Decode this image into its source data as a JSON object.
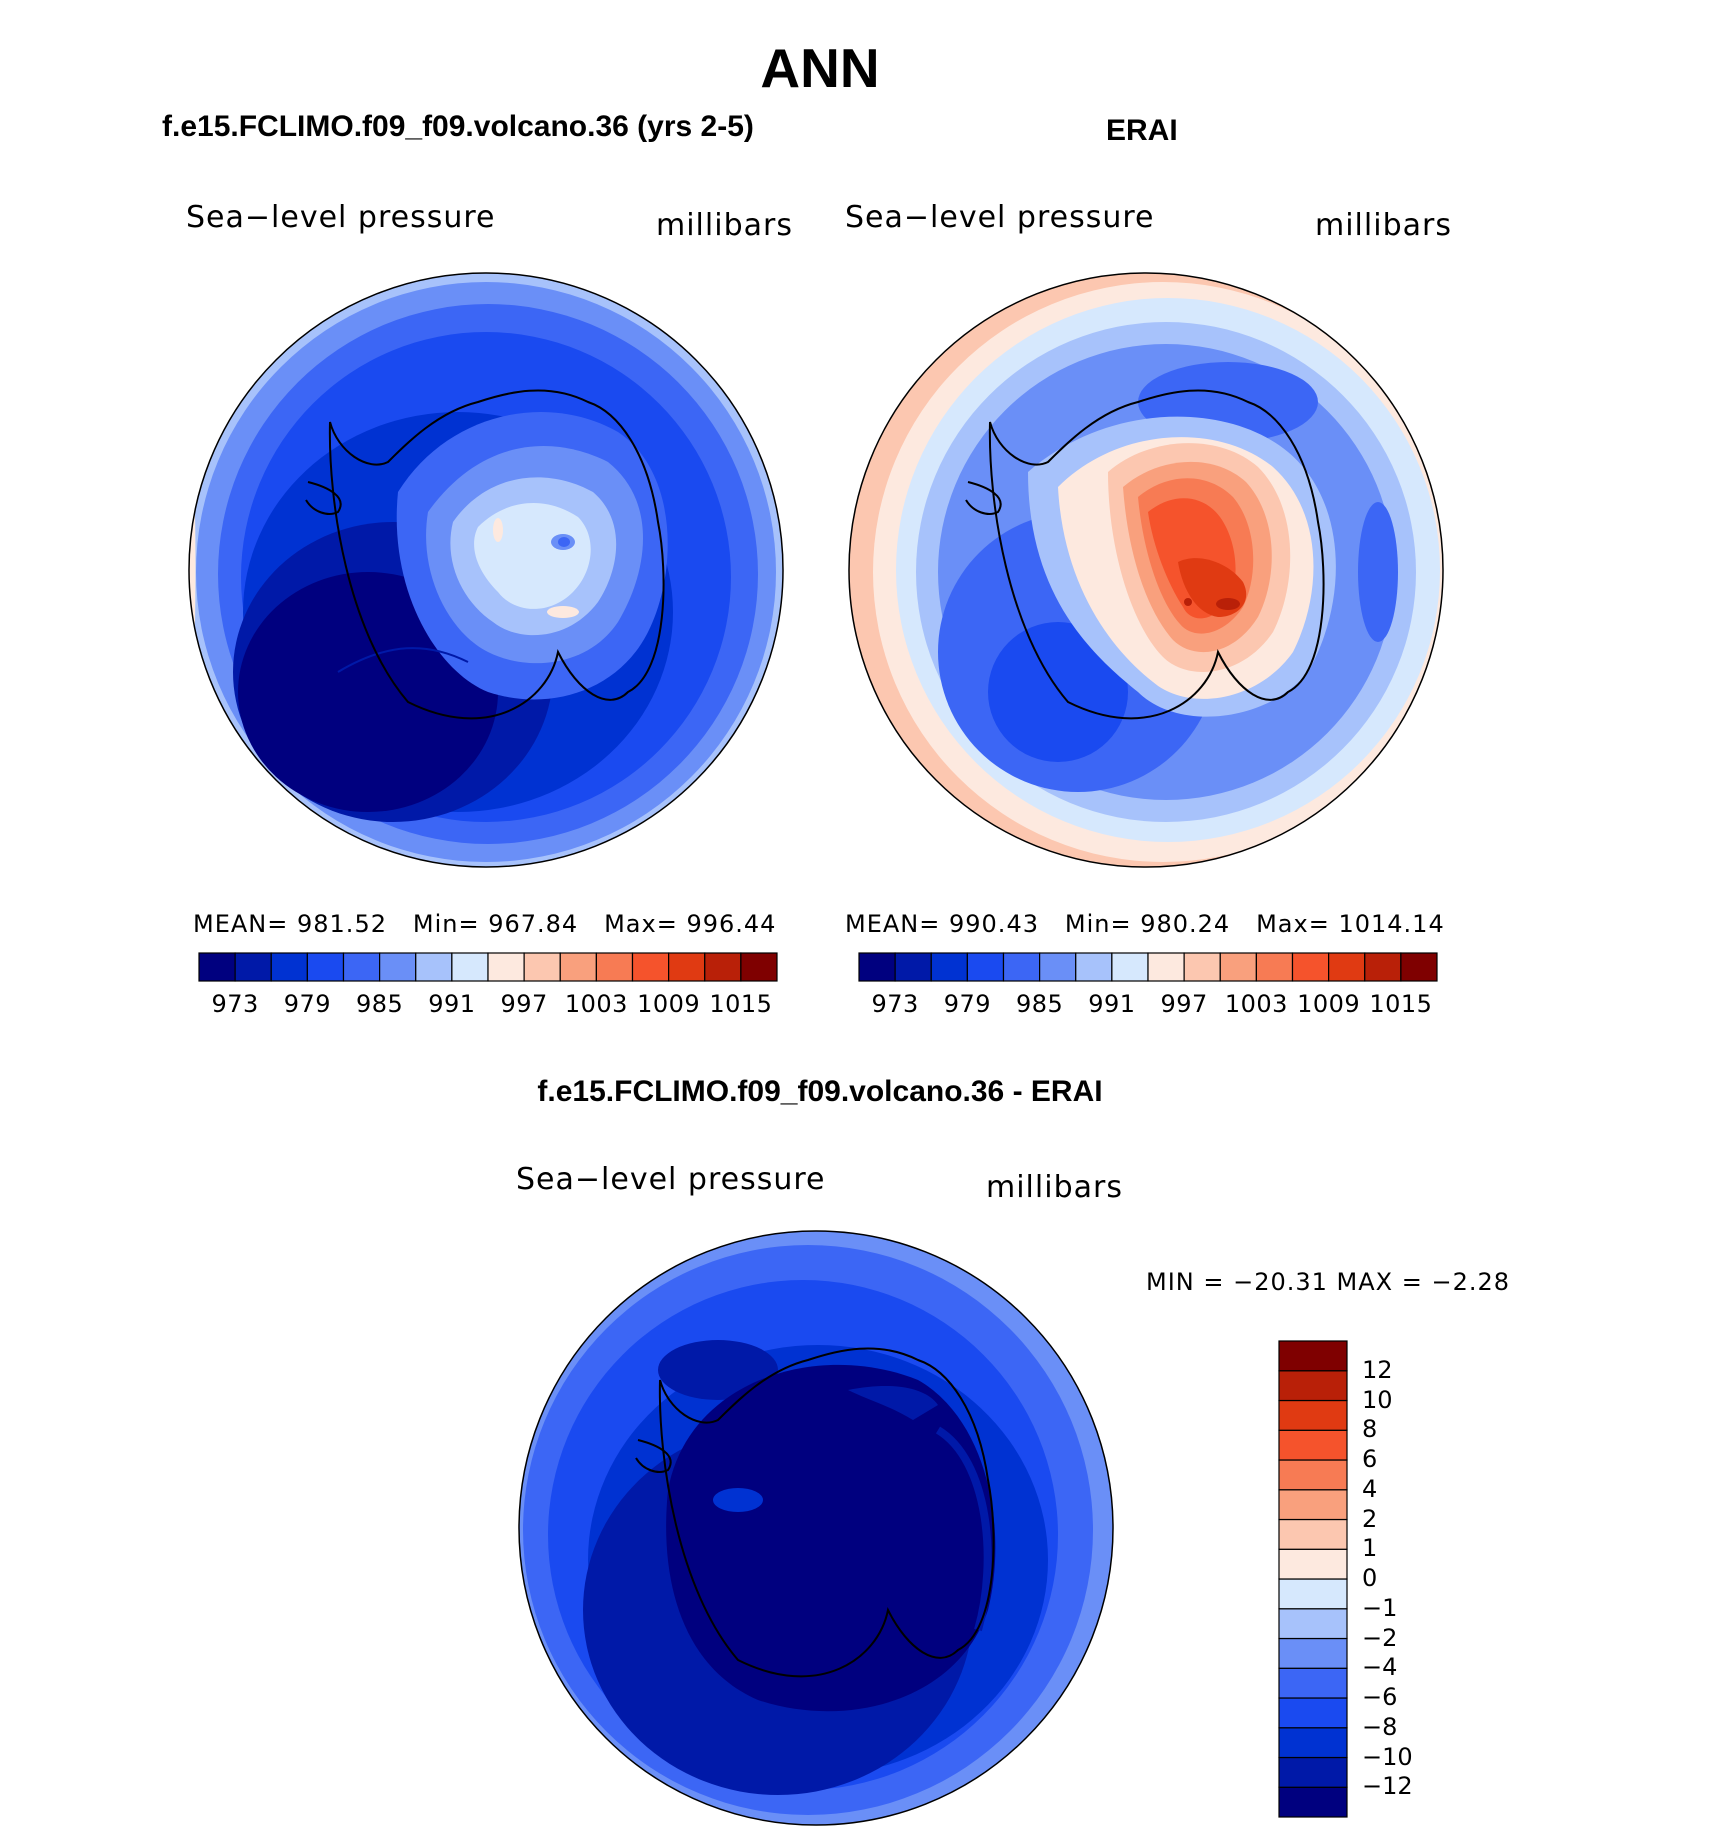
{
  "title": "ANN",
  "panels": {
    "model": {
      "heading": "f.e15.FCLIMO.f09_f09.volcano.36 (yrs 2-5)",
      "variable": "Sea−level pressure",
      "units": "millibars",
      "stats": {
        "mean_label": "MEAN=",
        "mean": "981.52",
        "min_label": "Min=",
        "min": "967.84",
        "max_label": "Max=",
        "max": "996.44"
      }
    },
    "obs": {
      "heading": "ERAI",
      "variable": "Sea−level pressure",
      "units": "millibars",
      "stats": {
        "mean_label": "MEAN=",
        "mean": "990.43",
        "min_label": "Min=",
        "min": "980.24",
        "max_label": "Max=",
        "max": "1014.14"
      }
    },
    "diff": {
      "heading": "f.e15.FCLIMO.f09_f09.volcano.36 - ERAI",
      "variable": "Sea−level pressure",
      "units": "millibars",
      "stats_text": "MIN = −20.31  MAX =   −2.28"
    }
  },
  "field_colorbar": {
    "colors": [
      "#00007f",
      "#0019a8",
      "#0032d2",
      "#1a4af0",
      "#3c66f5",
      "#6a8ff7",
      "#a7c2fb",
      "#d6e8fd",
      "#fde9df",
      "#fcc7b0",
      "#f9a07d",
      "#f77b54",
      "#f5532c",
      "#e03a12",
      "#b92008",
      "#7f0000"
    ],
    "tick_labels": [
      "973",
      "979",
      "985",
      "991",
      "997",
      "1003",
      "1009",
      "1015"
    ]
  },
  "diff_colorbar": {
    "colors": [
      "#00007f",
      "#0019a8",
      "#0032d2",
      "#1a4af0",
      "#3c66f5",
      "#6a8ff7",
      "#a7c2fb",
      "#d6e8fd",
      "#fde9df",
      "#fcc7b0",
      "#f9a07d",
      "#f77b54",
      "#f5532c",
      "#e03a12",
      "#b92008",
      "#7f0000"
    ],
    "tick_labels": [
      "−12",
      "−10",
      "−8",
      "−6",
      "−4",
      "−2",
      "−1",
      "0",
      "1",
      "2",
      "4",
      "6",
      "8",
      "10",
      "12"
    ]
  }
}
